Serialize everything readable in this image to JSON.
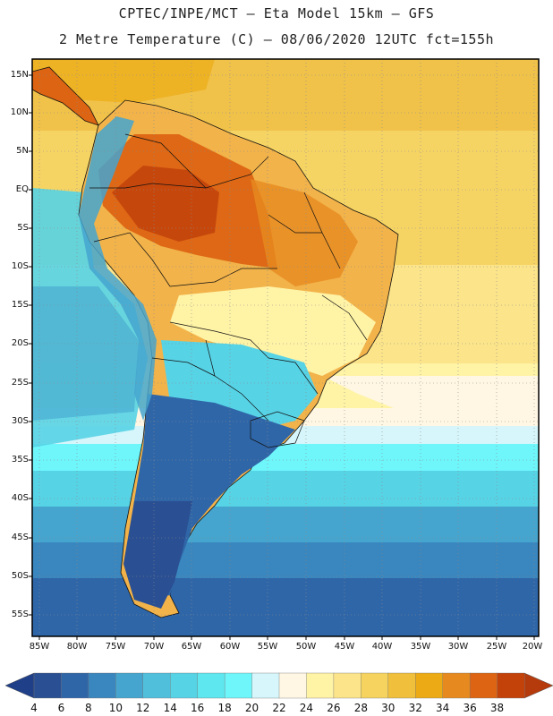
{
  "title_line1": "CPTEC/INPE/MCT –  Eta Model 15km – GFS",
  "title_line2": "2 Metre Temperature (C) – 08/06/2020 12UTC fct=155h",
  "map": {
    "lat_labels": [
      "15N",
      "10N",
      "5N",
      "EQ",
      "5S",
      "10S",
      "15S",
      "20S",
      "25S",
      "30S",
      "35S",
      "40S",
      "45S",
      "50S",
      "55S"
    ],
    "lon_labels": [
      "85W",
      "80W",
      "75W",
      "70W",
      "65W",
      "60W",
      "55W",
      "50W",
      "45W",
      "40W",
      "35W",
      "30W",
      "25W",
      "20W"
    ]
  },
  "colorbar": {
    "labels": [
      "4",
      "6",
      "8",
      "10",
      "12",
      "14",
      "16",
      "18",
      "20",
      "22",
      "24",
      "26",
      "28",
      "30",
      "32",
      "34",
      "36",
      "38"
    ],
    "colors": [
      "#2a4f92",
      "#2f66a8",
      "#3a86be",
      "#45a5cf",
      "#4fbfdc",
      "#57d3e6",
      "#5ee7ee",
      "#6ef6fb",
      "#d6f6fb",
      "#fff7e3",
      "#fff3a6",
      "#fbe48a",
      "#f6d25e",
      "#f0bf3c",
      "#ecab15",
      "#e68a1f",
      "#dc6412",
      "#c2420a"
    ],
    "under_color": "#1f3f88",
    "over_color": "#b53b0d"
  }
}
